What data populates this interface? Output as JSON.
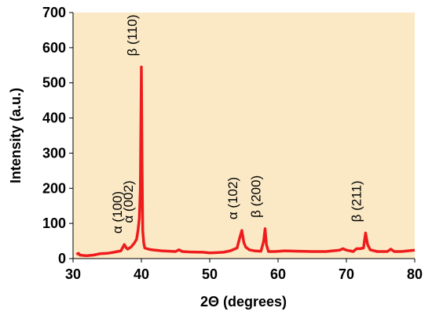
{
  "chart_data": {
    "type": "line",
    "title": "",
    "xlabel": "2Θ (degrees)",
    "ylabel": "Intensity (a.u.)",
    "xlim": [
      30,
      80
    ],
    "ylim": [
      0,
      700
    ],
    "x_ticks": [
      30,
      40,
      50,
      60,
      70,
      80
    ],
    "y_ticks": [
      0,
      100,
      200,
      300,
      400,
      500,
      600,
      700
    ],
    "grid": false,
    "colors": {
      "line": "#ee1c1c",
      "plot_background": "#fbe9c6"
    },
    "series": [
      {
        "x": [
          30.5,
          30.8,
          31.0,
          31.5,
          32.0,
          33.0,
          34.0,
          35.0,
          36.0,
          37.0,
          37.5,
          37.8,
          38.0,
          38.5,
          39.0,
          39.3,
          39.5,
          39.7,
          39.85,
          40.0,
          40.1,
          40.2,
          40.35,
          40.5,
          40.8,
          41.5,
          43.0,
          45.0,
          45.5,
          46.0,
          47.0,
          49.0,
          50.0,
          51.0,
          52.0,
          53.0,
          54.0,
          54.4,
          54.7,
          55.0,
          55.3,
          55.8,
          56.5,
          57.5,
          57.9,
          58.1,
          58.3,
          58.6,
          59.5,
          61.0,
          63.0,
          65.0,
          67.0,
          69.0,
          69.5,
          70.0,
          71.0,
          71.5,
          72.0,
          72.5,
          72.8,
          73.1,
          73.5,
          74.5,
          76.0,
          76.5,
          77.0,
          78.0,
          79.0,
          80.0
        ],
        "y": [
          12,
          15,
          10,
          9,
          8,
          10,
          14,
          15,
          18,
          22,
          40,
          30,
          27,
          33,
          45,
          55,
          80,
          115,
          200,
          545,
          260,
          80,
          45,
          30,
          28,
          25,
          22,
          20,
          25,
          20,
          19,
          18,
          16,
          17,
          18,
          22,
          30,
          60,
          80,
          45,
          32,
          25,
          22,
          21,
          50,
          85,
          40,
          20,
          20,
          22,
          21,
          20,
          20,
          24,
          28,
          24,
          20,
          28,
          28,
          30,
          73,
          40,
          25,
          20,
          20,
          27,
          20,
          20,
          22,
          24
        ]
      }
    ],
    "annotations": [
      {
        "text": "α (100)",
        "x": 37.8,
        "y": 40
      },
      {
        "text": "α (002)",
        "x": 39.4,
        "y": 70
      },
      {
        "text": "β (110)",
        "x": 40.0,
        "y": 545
      },
      {
        "text": "α (102)",
        "x": 54.7,
        "y": 80
      },
      {
        "text": "β (200)",
        "x": 58.1,
        "y": 85
      },
      {
        "text": "β (211)",
        "x": 72.8,
        "y": 73
      }
    ]
  }
}
